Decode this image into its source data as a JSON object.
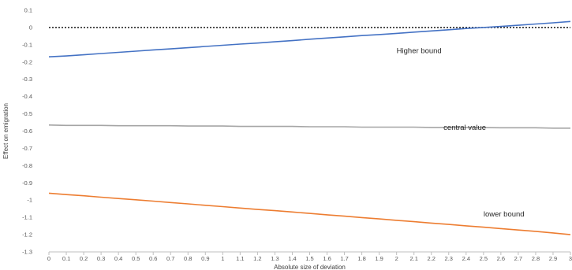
{
  "chart_data": {
    "type": "line",
    "title": "",
    "xlabel": "Absolute size of deviation",
    "ylabel": "Effect on emigration",
    "xlim": [
      0,
      3
    ],
    "ylim": [
      -1.3,
      0.1
    ],
    "x_ticks": [
      "0",
      "0.1",
      "0.2",
      "0.3",
      "0.4",
      "0.5",
      "0.6",
      "0.7",
      "0.8",
      "0.9",
      "1",
      "1.1",
      "1.2",
      "1.3",
      "1.4",
      "1.5",
      "1.6",
      "1.7",
      "1.8",
      "1.9",
      "2",
      "2.1",
      "2.2",
      "2.3",
      "2.4",
      "2.5",
      "2.6",
      "2.7",
      "2.8",
      "2.9",
      "3"
    ],
    "y_ticks": [
      "0.1",
      "0",
      "-0.1",
      "-0.2",
      "-0.3",
      "-0.4",
      "-0.5",
      "-0.6",
      "-0.7",
      "-0.8",
      "-0.9",
      "-1",
      "-1.1",
      "-1.2",
      "-1.3"
    ],
    "x": [
      0,
      0.1,
      0.2,
      0.3,
      0.4,
      0.5,
      0.6,
      0.7,
      0.8,
      0.9,
      1,
      1.1,
      1.2,
      1.3,
      1.4,
      1.5,
      1.6,
      1.7,
      1.8,
      1.9,
      2,
      2.1,
      2.2,
      2.3,
      2.4,
      2.5,
      2.6,
      2.7,
      2.8,
      2.9,
      3
    ],
    "series": [
      {
        "name": "Higher bound",
        "color": "#4472c4",
        "values": [
          -0.17,
          -0.165,
          -0.158,
          -0.151,
          -0.144,
          -0.137,
          -0.13,
          -0.124,
          -0.117,
          -0.11,
          -0.103,
          -0.096,
          -0.09,
          -0.083,
          -0.076,
          -0.068,
          -0.061,
          -0.054,
          -0.047,
          -0.041,
          -0.034,
          -0.027,
          -0.02,
          -0.013,
          -0.006,
          0.0,
          0.006,
          0.013,
          0.02,
          0.027,
          0.035
        ]
      },
      {
        "name": "central value",
        "color": "#a5a5a5",
        "values": [
          -0.565,
          -0.567,
          -0.567,
          -0.567,
          -0.569,
          -0.569,
          -0.569,
          -0.569,
          -0.571,
          -0.571,
          -0.571,
          -0.573,
          -0.573,
          -0.573,
          -0.573,
          -0.575,
          -0.575,
          -0.575,
          -0.577,
          -0.577,
          -0.577,
          -0.577,
          -0.579,
          -0.579,
          -0.579,
          -0.58,
          -0.581,
          -0.581,
          -0.581,
          -0.583,
          -0.583
        ]
      },
      {
        "name": "lower bound",
        "color": "#ed7d31",
        "values": [
          -0.96,
          -0.968,
          -0.975,
          -0.983,
          -0.991,
          -0.998,
          -1.006,
          -1.014,
          -1.022,
          -1.03,
          -1.038,
          -1.046,
          -1.054,
          -1.061,
          -1.069,
          -1.077,
          -1.085,
          -1.093,
          -1.101,
          -1.109,
          -1.117,
          -1.125,
          -1.133,
          -1.141,
          -1.149,
          -1.157,
          -1.165,
          -1.173,
          -1.181,
          -1.19,
          -1.2
        ]
      }
    ],
    "reference_line": {
      "y": 0,
      "style": "dotted",
      "color": "#000000"
    },
    "annotations": [
      {
        "text": "Higher bound",
        "x": 2.0,
        "y": -0.135
      },
      {
        "text": "central value",
        "x": 2.27,
        "y": -0.58
      },
      {
        "text": "lower bound",
        "x": 2.5,
        "y": -1.08
      }
    ],
    "grid": false,
    "legend": "none"
  }
}
